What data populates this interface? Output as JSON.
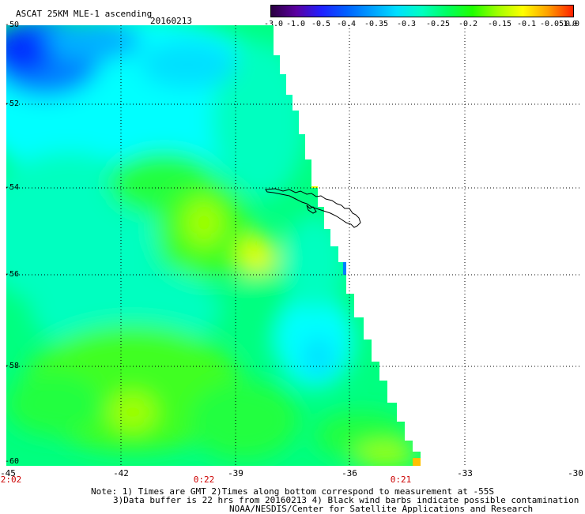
{
  "header": {
    "title": "ASCAT 25KM MLE-1 ascending",
    "date": "20160213"
  },
  "colorbar": {
    "labels": [
      "-3.0",
      "-1.0",
      "-0.5",
      "-0.4",
      "-0.35",
      "-0.3",
      "-0.25",
      "-0.2",
      "-0.15",
      "-0.1",
      "-0.05",
      "0.0",
      "1.0"
    ],
    "colors": [
      "#2a0040",
      "#5a00a0",
      "#2020ff",
      "#0060ff",
      "#00a0ff",
      "#00e0ff",
      "#00ffc0",
      "#00ff60",
      "#20ff00",
      "#a0ff00",
      "#ffff00",
      "#ffa000",
      "#ff2000"
    ]
  },
  "map": {
    "lat_range": [
      -60,
      -50
    ],
    "lon_range": [
      -45,
      -30
    ],
    "lat_ticks": [
      "-50",
      "-52",
      "-54",
      "-56",
      "-58",
      "-60"
    ],
    "lon_ticks": [
      "-45",
      "-42",
      "-39",
      "-36",
      "-33",
      "-30"
    ],
    "colors": {
      "deep_blue": "#0030ff",
      "blue": "#0080ff",
      "light_blue": "#00b0ff",
      "cyan": "#00ffff",
      "aqua": "#00ffc0",
      "teal_green": "#00ff80",
      "green": "#20ff40",
      "bright_green": "#40ff20",
      "yellow_green": "#a0ff00",
      "yellow": "#e0ff00",
      "orange": "#ffc000"
    },
    "features": [
      "coastline",
      "graticule"
    ]
  },
  "times": [
    {
      "lon": "-45",
      "label": "2:02"
    },
    {
      "lon": "-40",
      "label": "0:22"
    },
    {
      "lon": "-35",
      "label": "0:21"
    }
  ],
  "notes": {
    "line1": "Note: 1) Times are GMT 2)Times along bottom correspond to measurement at -55S",
    "line2": "3)Data buffer is 22 hrs from 20160213 4) Black wind barbs indicate possible contamination",
    "line3": "NOAA/NESDIS/Center for Satellite Applications and Research"
  }
}
